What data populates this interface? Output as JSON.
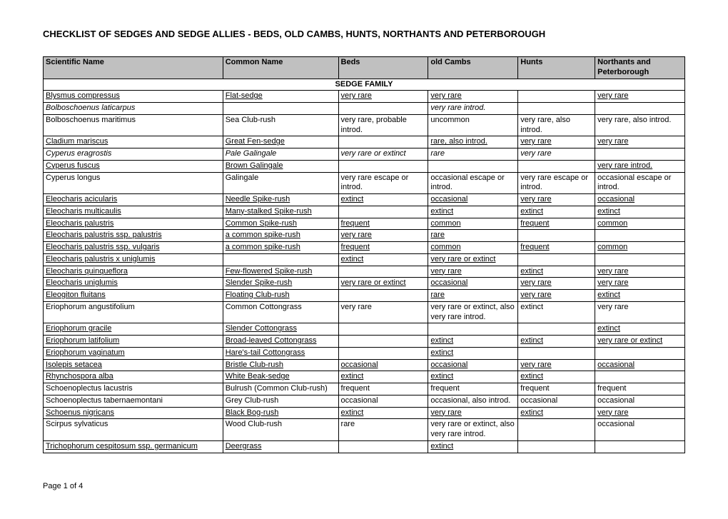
{
  "title": "CHECKLIST OF SEDGES AND SEDGE ALLIES - BEDS, OLD CAMBS, HUNTS, NORTHANTS AND PETERBOROUGH",
  "footer": "Page 1 of 4",
  "headers": {
    "c1": "Scientific Name",
    "c2": "Common Name",
    "c3": "Beds",
    "c4": "old Cambs",
    "c5": "Hunts",
    "c6": "Northants and Peterborough"
  },
  "section": "SEDGE FAMILY",
  "rows": [
    {
      "s": "Blysmus compressus",
      "c": "Flat-sedge",
      "b": "very rare",
      "o": "very rare",
      "h": "",
      "n": "very rare",
      "sty": "underline"
    },
    {
      "s": "Bolboschoenus laticarpus",
      "c": "",
      "b": "",
      "o": "very rare introd.",
      "h": "",
      "n": "",
      "sty": "italic"
    },
    {
      "s": "Bolboschoenus maritimus",
      "c": "Sea Club-rush",
      "b": "very rare, probable introd.",
      "o": "uncommon",
      "h": "very rare, also introd.",
      "n": "very rare, also introd."
    },
    {
      "s": "Cladium mariscus",
      "c": "Great Fen-sedge",
      "b": "",
      "o": "rare, also introd.",
      "h": "very rare",
      "n": "very rare",
      "sty": "underline"
    },
    {
      "s": "Cyperus eragrostis",
      "c": "Pale Galingale",
      "b": "very rare or extinct",
      "o": "rare",
      "h": "very rare",
      "n": "",
      "sty": "italic"
    },
    {
      "s": "Cyperus fuscus",
      "c": "Brown Galingale",
      "b": "",
      "o": "",
      "h": "",
      "n": "very rare introd.",
      "sty": "underline"
    },
    {
      "s": "Cyperus longus",
      "c": "Galingale",
      "b": "very rare escape or introd.",
      "o": "occasional escape or introd.",
      "h": "very rare escape or introd.",
      "n": "occasional escape or introd."
    },
    {
      "s": "Eleocharis acicularis",
      "c": "Needle Spike-rush",
      "b": "extinct",
      "o": "occasional",
      "h": "very rare",
      "n": "occasional",
      "sty": "underline"
    },
    {
      "s": "Eleocharis multicaulis",
      "c": "Many-stalked Spike-rush",
      "b": "",
      "o": "extinct",
      "h": "extinct",
      "n": "extinct",
      "sty": "underline"
    },
    {
      "s": "Eleocharis palustris",
      "c": "Common Spike-rush",
      "b": "frequent",
      "o": "common",
      "h": "frequent",
      "n": "common",
      "sty": "underline"
    },
    {
      "s": "Eleocharis palustris ssp. palustris",
      "c": "a common spike-rush",
      "b": "very rare",
      "o": "rare",
      "h": "",
      "n": "",
      "sty": "underline"
    },
    {
      "s": "Eleocharis palustris ssp. vulgaris",
      "c": "a common spike-rush",
      "b": "frequent",
      "o": "common",
      "h": "frequent",
      "n": "common",
      "sty": "underline"
    },
    {
      "s": "Eleocharis palustris x uniglumis",
      "c": "",
      "b": "extinct",
      "o": "very rare or extinct",
      "h": "",
      "n": "",
      "sty": "underline"
    },
    {
      "s": "Eleocharis quinqueflora",
      "c": "Few-flowered Spike-rush",
      "b": "",
      "o": "very rare",
      "h": "extinct",
      "n": "very rare",
      "sty": "underline"
    },
    {
      "s": "Eleocharis uniglumis",
      "c": "Slender Spike-rush",
      "b": "very rare or extinct",
      "o": "occasional",
      "h": "very rare",
      "n": "very rare",
      "sty": "underline"
    },
    {
      "s": "Eleogiton fluitans",
      "c": "Floating Club-rush",
      "b": "",
      "o": "rare",
      "h": "very rare",
      "n": "extinct",
      "sty": "underline"
    },
    {
      "s": "Eriophorum angustifolium",
      "c": "Common Cottongrass",
      "b": "very rare",
      "o": "very rare or extinct, also very rare introd.",
      "h": "extinct",
      "n": "very rare"
    },
    {
      "s": "Eriophorum gracile",
      "c": "Slender Cottongrass",
      "b": "",
      "o": "",
      "h": "",
      "n": "extinct",
      "sty": "underline"
    },
    {
      "s": "Eriophorum latifolium",
      "c": "Broad-leaved Cottongrass",
      "b": "",
      "o": "extinct",
      "h": "extinct",
      "n": "very rare or extinct",
      "sty": "underline"
    },
    {
      "s": "Eriophorum vaginatum",
      "c": "Hare's-tail Cottongrass",
      "b": "",
      "o": "extinct",
      "h": "",
      "n": "",
      "sty": "underline"
    },
    {
      "s": "Isolepis setacea",
      "c": "Bristle Club-rush",
      "b": "occasional",
      "o": "occasional",
      "h": "very rare",
      "n": "occasional",
      "sty": "underline"
    },
    {
      "s": "Rhynchospora alba",
      "c": "White Beak-sedge",
      "b": "extinct",
      "o": "extinct",
      "h": "extinct",
      "n": "",
      "sty": "underline"
    },
    {
      "s": "Schoenoplectus lacustris",
      "c": "Bulrush (Common Club-rush)",
      "b": "frequent",
      "o": "frequent",
      "h": "frequent",
      "n": "frequent"
    },
    {
      "s": "Schoenoplectus tabernaemontani",
      "c": "Grey Club-rush",
      "b": "occasional",
      "o": "occasional, also introd.",
      "h": "occasional",
      "n": "occasional"
    },
    {
      "s": "Schoenus nigricans",
      "c": "Black Bog-rush",
      "b": "extinct",
      "o": "very rare",
      "h": "extinct",
      "n": "very rare",
      "sty": "underline"
    },
    {
      "s": "Scirpus sylvaticus",
      "c": "Wood Club-rush",
      "b": "rare",
      "o": "very rare or extinct, also very rare introd.",
      "h": "",
      "n": "occasional"
    },
    {
      "s": "Trichophorum cespitosum ssp. germanicum",
      "c": "Deergrass",
      "b": "",
      "o": "extinct",
      "h": "",
      "n": "",
      "sty": "underline"
    }
  ]
}
